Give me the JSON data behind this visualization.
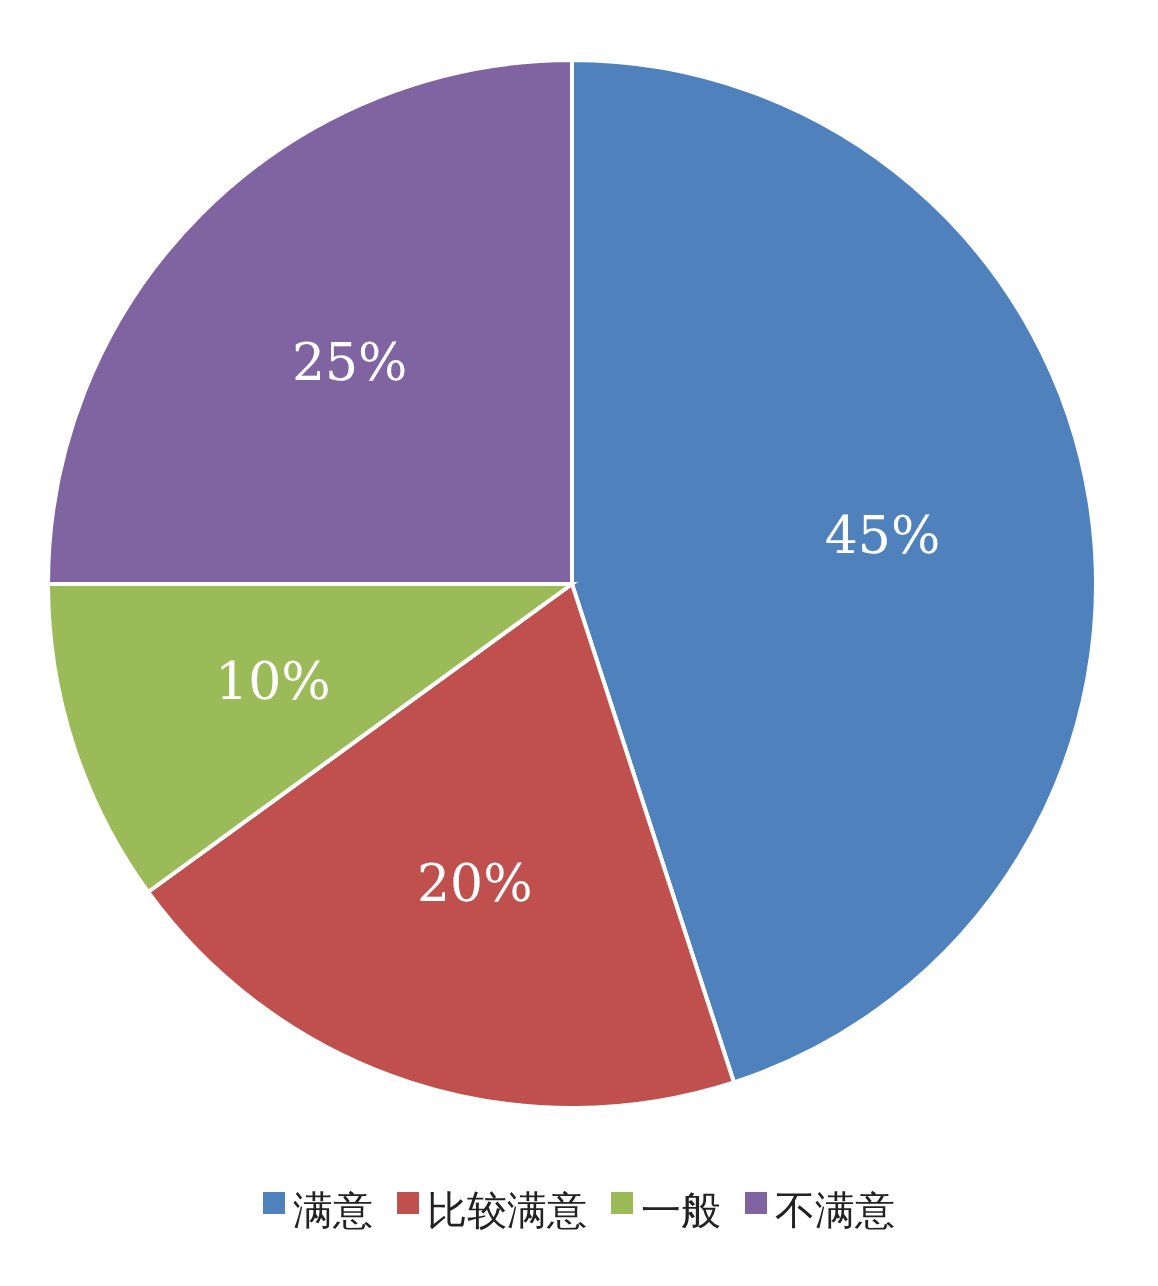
{
  "chart_data": {
    "type": "pie",
    "categories": [
      "满意",
      "比较满意",
      "一般",
      "不满意"
    ],
    "values": [
      45,
      20,
      10,
      25
    ],
    "colors": [
      "#4f81bd",
      "#c0504d",
      "#9bbb59",
      "#8064a2"
    ],
    "value_labels": [
      "45%",
      "20%",
      "10%",
      "25%"
    ],
    "legend": "bottom"
  }
}
